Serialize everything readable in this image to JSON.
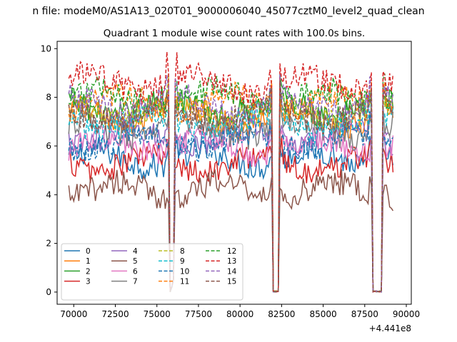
{
  "figure": {
    "suptitle": "n file: modeM0/AS1A13_020T01_9000006040_45077cztM0_level2_quad_clean",
    "offset_label": "+4.441e8"
  },
  "chart_data": {
    "type": "line",
    "title": "Quadrant 1 module wise count rates with 100.0s bins.",
    "xlabel": "",
    "ylabel": "",
    "x_offset": 444100000,
    "xlim": [
      69000,
      90300
    ],
    "ylim": [
      -0.5,
      10.3
    ],
    "xticks": [
      70000,
      72500,
      75000,
      77500,
      80000,
      82500,
      85000,
      87500,
      90000
    ],
    "xtick_labels": [
      "70000",
      "72500",
      "75000",
      "77500",
      "80000",
      "82500",
      "85000",
      "87500",
      "90000"
    ],
    "yticks": [
      0,
      2,
      4,
      6,
      8,
      10
    ],
    "ytick_labels": [
      "0",
      "2",
      "4",
      "6",
      "8",
      "10"
    ],
    "grid": false,
    "legend_position": "lower-left",
    "legend_columns": 4,
    "x_start": 69700,
    "x_end": 89200,
    "bin_seconds": 100,
    "gaps": [
      {
        "start": 75700,
        "end": 76100,
        "depth_values": [
          0.6,
          0.0,
          0.2,
          0.5
        ]
      },
      {
        "start": 81900,
        "end": 82400,
        "depth_values": [
          0.0
        ]
      },
      {
        "start": 87900,
        "end": 88600,
        "depth_values": [
          0.0
        ]
      }
    ],
    "series": [
      {
        "name": "0",
        "color": "#1f77b4",
        "dash": "solid",
        "mean": 5.5
      },
      {
        "name": "1",
        "color": "#ff7f0e",
        "dash": "solid",
        "mean": 7.2
      },
      {
        "name": "2",
        "color": "#2ca02c",
        "dash": "solid",
        "mean": 7.6
      },
      {
        "name": "3",
        "color": "#d62728",
        "dash": "solid",
        "mean": 5.3
      },
      {
        "name": "4",
        "color": "#9467bd",
        "dash": "solid",
        "mean": 6.4
      },
      {
        "name": "5",
        "color": "#8c564b",
        "dash": "solid",
        "mean": 4.2
      },
      {
        "name": "6",
        "color": "#e377c2",
        "dash": "solid",
        "mean": 6.0
      },
      {
        "name": "7",
        "color": "#7f7f7f",
        "dash": "solid",
        "mean": 6.7
      },
      {
        "name": "8",
        "color": "#bcbd22",
        "dash": "dashed",
        "mean": 7.4
      },
      {
        "name": "9",
        "color": "#17becf",
        "dash": "dashed",
        "mean": 7.0
      },
      {
        "name": "10",
        "color": "#1f77b4",
        "dash": "dashed",
        "mean": 6.2
      },
      {
        "name": "11",
        "color": "#ff7f0e",
        "dash": "dashed",
        "mean": 7.8
      },
      {
        "name": "12",
        "color": "#2ca02c",
        "dash": "dashed",
        "mean": 8.0
      },
      {
        "name": "13",
        "color": "#d62728",
        "dash": "dashed",
        "mean": 8.6
      },
      {
        "name": "14",
        "color": "#9467bd",
        "dash": "dashed",
        "mean": 7.7
      },
      {
        "name": "15",
        "color": "#8c564b",
        "dash": "dashed",
        "mean": 7.3
      }
    ]
  }
}
